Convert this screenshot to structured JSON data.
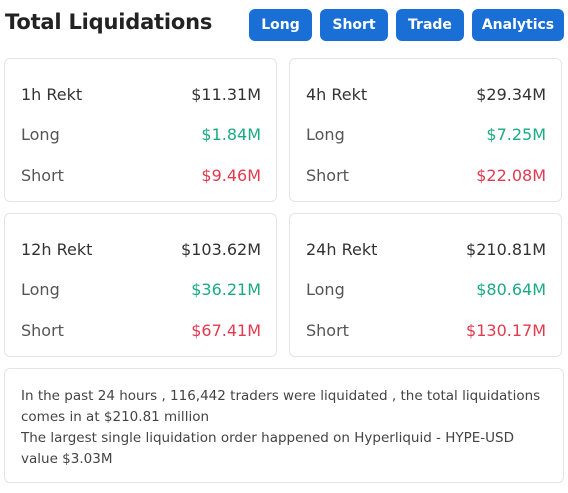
{
  "header": {
    "title": "Total Liquidations",
    "buttons": {
      "long": "Long",
      "short": "Short",
      "trade": "Trade",
      "analytics": "Analytics"
    }
  },
  "cards": [
    {
      "period": "1h Rekt",
      "total": "$11.31M",
      "long_label": "Long",
      "long": "$1.84M",
      "short_label": "Short",
      "short": "$9.46M"
    },
    {
      "period": "4h Rekt",
      "total": "$29.34M",
      "long_label": "Long",
      "long": "$7.25M",
      "short_label": "Short",
      "short": "$22.08M"
    },
    {
      "period": "12h Rekt",
      "total": "$103.62M",
      "long_label": "Long",
      "long": "$36.21M",
      "short_label": "Short",
      "short": "$67.41M"
    },
    {
      "period": "24h Rekt",
      "total": "$210.81M",
      "long_label": "Long",
      "long": "$80.64M",
      "short_label": "Short",
      "short": "$130.17M"
    }
  ],
  "summary": {
    "line1": "In the past 24 hours , 116,442 traders were liquidated , the total liquidations comes in at $210.81 million",
    "line2": "The largest single liquidation order happened on Hyperliquid - HYPE-USD value $3.03M"
  },
  "colors": {
    "accent": "#1a6fd6",
    "long": "#1bab83",
    "short": "#e23a4f"
  }
}
